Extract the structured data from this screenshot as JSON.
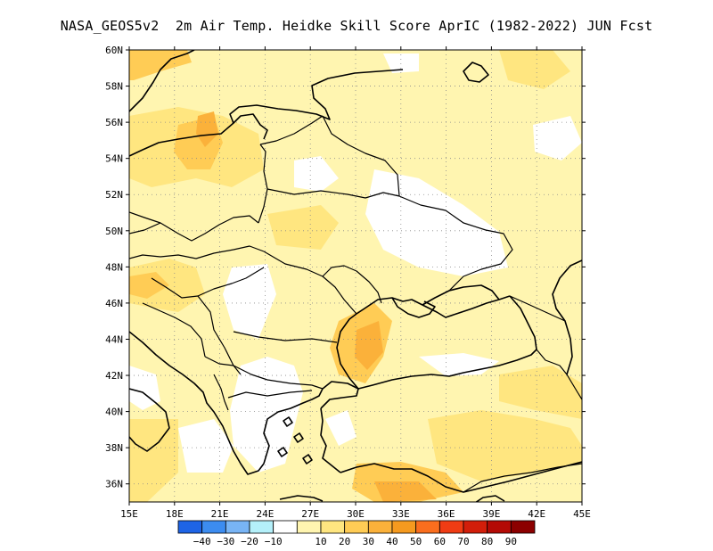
{
  "title": "NASA_GEOS5v2  2m Air Temp. Heidke Skill Score AprIC (1982-2022) JUN Fcst",
  "map": {
    "lon_range": [
      15,
      45
    ],
    "lat_range": [
      35,
      60
    ],
    "lat_ticks": [
      {
        "value": 60,
        "label": "60N"
      },
      {
        "value": 58,
        "label": "58N"
      },
      {
        "value": 56,
        "label": "56N"
      },
      {
        "value": 54,
        "label": "54N"
      },
      {
        "value": 52,
        "label": "52N"
      },
      {
        "value": 50,
        "label": "50N"
      },
      {
        "value": 48,
        "label": "48N"
      },
      {
        "value": 46,
        "label": "46N"
      },
      {
        "value": 44,
        "label": "44N"
      },
      {
        "value": 42,
        "label": "42N"
      },
      {
        "value": 40,
        "label": "40N"
      },
      {
        "value": 38,
        "label": "38N"
      },
      {
        "value": 36,
        "label": "36N"
      }
    ],
    "lon_ticks": [
      {
        "value": 15,
        "label": "15E"
      },
      {
        "value": 18,
        "label": "18E"
      },
      {
        "value": 21,
        "label": "21E"
      },
      {
        "value": 24,
        "label": "24E"
      },
      {
        "value": 27,
        "label": "27E"
      },
      {
        "value": 30,
        "label": "30E"
      },
      {
        "value": 33,
        "label": "33E"
      },
      {
        "value": 36,
        "label": "36E"
      },
      {
        "value": 39,
        "label": "39E"
      },
      {
        "value": 42,
        "label": "42E"
      },
      {
        "value": 45,
        "label": "45E"
      }
    ],
    "grid": true,
    "fill_colors": [
      "#ffffff",
      "#fff5b0",
      "#ffe680",
      "#ffcc55",
      "#fbb13a",
      "#f59a1f"
    ]
  },
  "colorbar": {
    "colors": [
      "#1e64e6",
      "#3c8cf0",
      "#78b4f5",
      "#b4f0fa",
      "#ffffff",
      "#fff5b0",
      "#ffe680",
      "#ffcc55",
      "#fbb13a",
      "#f59a1f",
      "#fa6e1e",
      "#f03c14",
      "#d21e0a",
      "#b40a05",
      "#8c0000"
    ],
    "labels": [
      "-40",
      "-30",
      "-20",
      "-10",
      "10",
      "20",
      "30",
      "40",
      "50",
      "60",
      "70",
      "80",
      "90"
    ]
  }
}
